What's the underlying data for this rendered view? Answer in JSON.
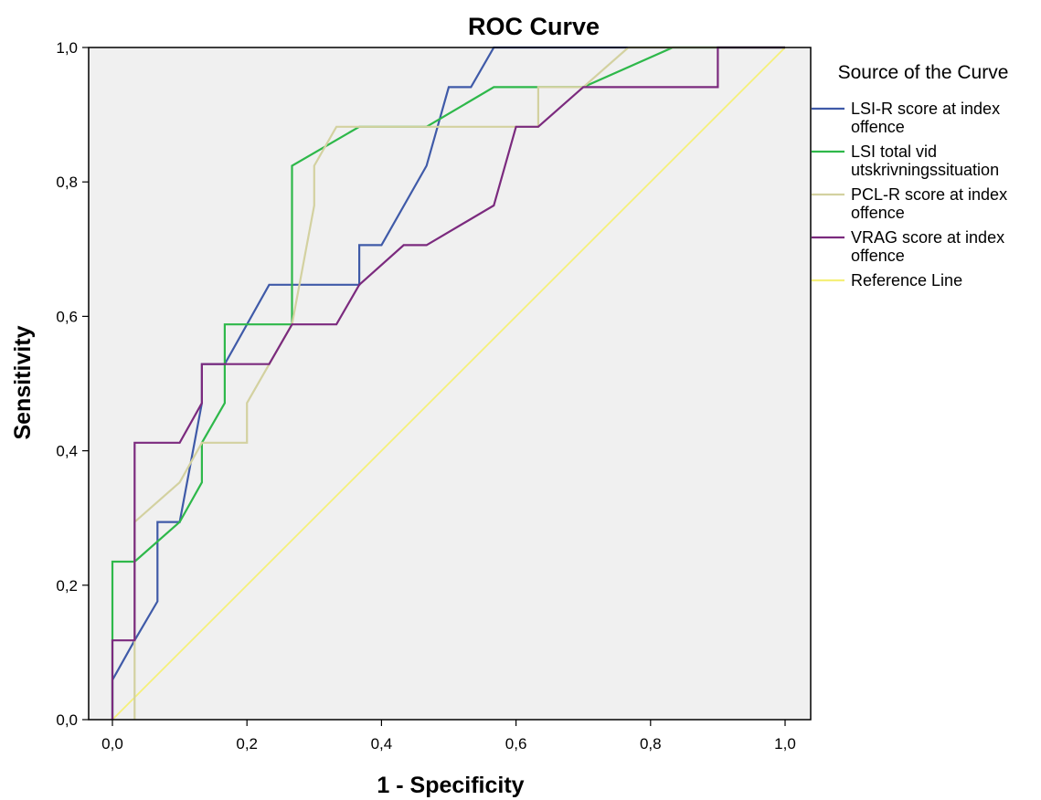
{
  "chart_data": {
    "type": "line",
    "title": "ROC Curve",
    "xlabel": "1 - Specificity",
    "ylabel": "Sensitivity",
    "xlim": [
      0,
      1
    ],
    "ylim": [
      0,
      1
    ],
    "x_ticks": [
      "0,0",
      "0,2",
      "0,4",
      "0,6",
      "0,8",
      "1,0"
    ],
    "y_ticks": [
      "0,0",
      "0,2",
      "0,4",
      "0,6",
      "0,8",
      "1,0"
    ],
    "grid": false,
    "plot_background": "#f0f0f0",
    "legend": {
      "title": "Source of the Curve",
      "placement": "right"
    },
    "series": [
      {
        "name": [
          "LSI-R score at index",
          "offence"
        ],
        "color": "#3f5aa8",
        "points": [
          [
            0,
            0
          ],
          [
            0,
            0.059
          ],
          [
            0.033,
            0.118
          ],
          [
            0.067,
            0.176
          ],
          [
            0.067,
            0.294
          ],
          [
            0.1,
            0.294
          ],
          [
            0.133,
            0.471
          ],
          [
            0.133,
            0.529
          ],
          [
            0.167,
            0.529
          ],
          [
            0.233,
            0.647
          ],
          [
            0.367,
            0.647
          ],
          [
            0.367,
            0.706
          ],
          [
            0.4,
            0.706
          ],
          [
            0.467,
            0.824
          ],
          [
            0.5,
            0.941
          ],
          [
            0.533,
            0.941
          ],
          [
            0.567,
            1
          ],
          [
            0.6,
            1
          ],
          [
            1,
            1
          ]
        ]
      },
      {
        "name": [
          "LSI total vid",
          "utskrivningssituation"
        ],
        "color": "#2eb84a",
        "points": [
          [
            0,
            0
          ],
          [
            0,
            0.235
          ],
          [
            0.033,
            0.235
          ],
          [
            0.1,
            0.294
          ],
          [
            0.133,
            0.353
          ],
          [
            0.133,
            0.412
          ],
          [
            0.167,
            0.471
          ],
          [
            0.167,
            0.588
          ],
          [
            0.267,
            0.588
          ],
          [
            0.267,
            0.824
          ],
          [
            0.367,
            0.882
          ],
          [
            0.467,
            0.882
          ],
          [
            0.567,
            0.941
          ],
          [
            0.7,
            0.941
          ],
          [
            0.833,
            1
          ],
          [
            1,
            1
          ]
        ]
      },
      {
        "name": [
          "PCL-R score at index",
          "offence"
        ],
        "color": "#d3d1a0",
        "points": [
          [
            0.033,
            0
          ],
          [
            0.033,
            0.294
          ],
          [
            0.1,
            0.353
          ],
          [
            0.133,
            0.412
          ],
          [
            0.2,
            0.412
          ],
          [
            0.2,
            0.471
          ],
          [
            0.267,
            0.588
          ],
          [
            0.3,
            0.765
          ],
          [
            0.3,
            0.824
          ],
          [
            0.333,
            0.882
          ],
          [
            0.633,
            0.882
          ],
          [
            0.633,
            0.941
          ],
          [
            0.7,
            0.941
          ],
          [
            0.767,
            1
          ],
          [
            1,
            1
          ]
        ]
      },
      {
        "name": [
          "VRAG score at index",
          "offence"
        ],
        "color": "#7b2a7e",
        "points": [
          [
            0,
            0
          ],
          [
            0,
            0.118
          ],
          [
            0.033,
            0.118
          ],
          [
            0.033,
            0.412
          ],
          [
            0.1,
            0.412
          ],
          [
            0.133,
            0.471
          ],
          [
            0.133,
            0.529
          ],
          [
            0.233,
            0.529
          ],
          [
            0.267,
            0.588
          ],
          [
            0.333,
            0.588
          ],
          [
            0.367,
            0.647
          ],
          [
            0.433,
            0.706
          ],
          [
            0.467,
            0.706
          ],
          [
            0.567,
            0.765
          ],
          [
            0.6,
            0.882
          ],
          [
            0.633,
            0.882
          ],
          [
            0.7,
            0.941
          ],
          [
            0.9,
            0.941
          ],
          [
            0.9,
            1
          ],
          [
            1,
            1
          ]
        ]
      },
      {
        "name": [
          "Reference Line"
        ],
        "color": "#f5f07a",
        "points": [
          [
            0,
            0
          ],
          [
            1,
            1
          ]
        ]
      }
    ]
  }
}
